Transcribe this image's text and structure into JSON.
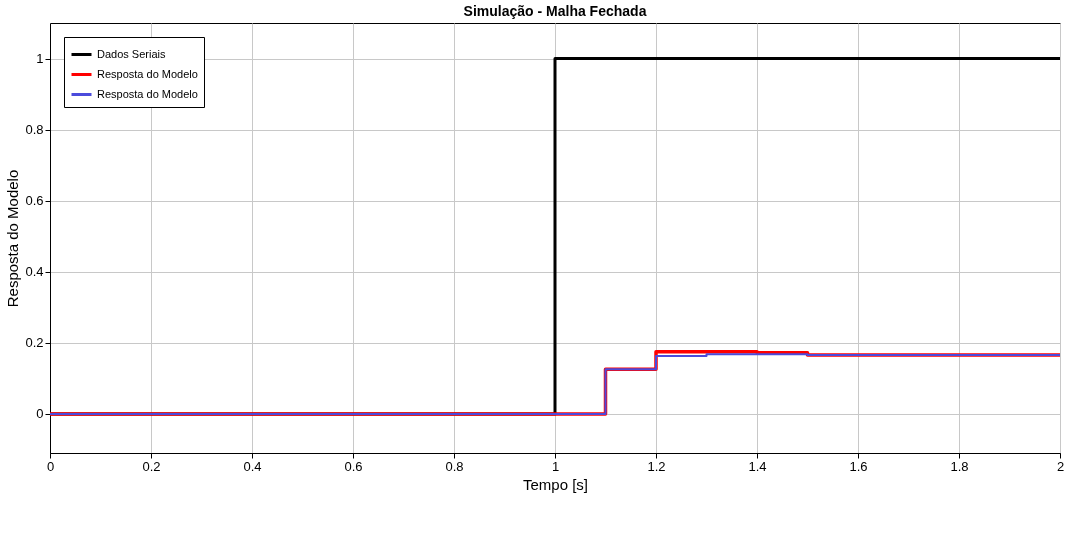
{
  "chart_data": {
    "type": "step",
    "title": "Simulação - Malha Fechada",
    "xlabel": "Tempo [s]",
    "ylabel": "Resposta do Modelo",
    "xlim": [
      0,
      2
    ],
    "xticks": [
      0,
      0.2,
      0.4,
      0.6,
      0.8,
      1,
      1.2,
      1.4,
      1.6,
      1.8,
      2
    ],
    "ylim": [
      -0.11,
      1.1
    ],
    "yticks": [
      0,
      0.2,
      0.4,
      0.6,
      0.8,
      1
    ],
    "grid": true,
    "legend": "top left",
    "line_style": "solid",
    "marker": "none",
    "series": [
      {
        "name": "Dados Seriais",
        "color": "#000000",
        "x": [
          0,
          1,
          2
        ],
        "values": [
          0,
          1,
          1
        ]
      },
      {
        "name": "Resposta do Modelo",
        "color": "#ff0000",
        "x": [
          0,
          1.1,
          1.2,
          1.4,
          1.5,
          2
        ],
        "values": [
          0,
          0.126,
          0.175,
          0.172,
          0.166,
          0.166
        ]
      },
      {
        "name": "Resposta do Modelo",
        "color": "#4b4bdc",
        "x": [
          0,
          1.1,
          1.2,
          1.3,
          1.5,
          2
        ],
        "values": [
          0,
          0.126,
          0.163,
          0.168,
          0.166,
          0.166
        ]
      }
    ]
  }
}
